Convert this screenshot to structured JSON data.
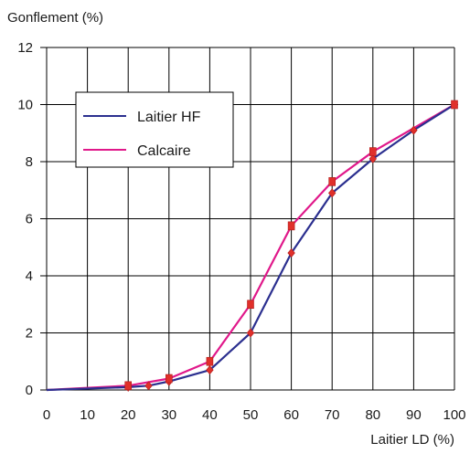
{
  "chart_data": {
    "type": "line",
    "ylabel": "Gonflement (%)",
    "xlabel": "Laitier LD (%)",
    "xlim": [
      0,
      100
    ],
    "ylim": [
      0,
      12
    ],
    "x_ticks": [
      0,
      10,
      20,
      30,
      40,
      50,
      60,
      70,
      80,
      90,
      100
    ],
    "y_ticks": [
      0,
      2,
      4,
      6,
      8,
      10,
      12
    ],
    "grid": true,
    "legend": "upper-left",
    "series": [
      {
        "name": "Laitier HF",
        "color": "#2b2f8f",
        "marker": "diamond",
        "x": [
          0,
          20,
          25,
          30,
          40,
          50,
          60,
          70,
          80,
          90,
          100
        ],
        "y": [
          0.0,
          0.1,
          0.15,
          0.3,
          0.7,
          2.0,
          4.8,
          6.9,
          8.1,
          9.1,
          10.0
        ]
      },
      {
        "name": "Calcaire",
        "color": "#e0188a",
        "marker": "square",
        "x": [
          0,
          20,
          30,
          40,
          50,
          60,
          70,
          80,
          100
        ],
        "y": [
          0.0,
          0.15,
          0.4,
          1.0,
          3.0,
          5.75,
          7.3,
          8.35,
          10.0
        ]
      }
    ],
    "marker_color": "#e0302a"
  }
}
